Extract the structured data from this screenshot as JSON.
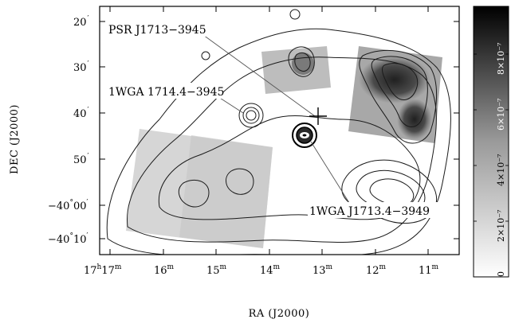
{
  "figure": {
    "axes": {
      "xlabel": "RA (J2000)",
      "ylabel": "DEC (J2000)",
      "x_ticks": [
        {
          "h": "17",
          "m": "17"
        },
        {
          "h": "",
          "m": "16"
        },
        {
          "h": "",
          "m": "15"
        },
        {
          "h": "",
          "m": "14"
        },
        {
          "h": "",
          "m": "13"
        },
        {
          "h": "",
          "m": "12"
        },
        {
          "h": "",
          "m": "11"
        }
      ],
      "y_ticks": [
        {
          "deg": "",
          "min": "20"
        },
        {
          "deg": "",
          "min": "30"
        },
        {
          "deg": "",
          "min": "40"
        },
        {
          "deg": "",
          "min": "50"
        },
        {
          "deg": "−40",
          "min": "00"
        },
        {
          "deg": "−40",
          "min": "10"
        }
      ]
    },
    "sources": [
      {
        "name": "PSR J1713−3945"
      },
      {
        "name": "1WGA 1714.4−3945"
      },
      {
        "name": "1WGA J1713.4−3949"
      }
    ],
    "colorbar": {
      "labels": [
        "0",
        "2×10⁻⁷",
        "4×10⁻⁷",
        "6×10⁻⁷",
        "8×10⁻⁷"
      ]
    },
    "colors": {
      "frame": "#000000",
      "contour": "#1a1a1a",
      "image_light": "#d9d9d9",
      "image_dark": "#1e1e1e"
    },
    "icons": [
      "crosshair-icon"
    ]
  }
}
